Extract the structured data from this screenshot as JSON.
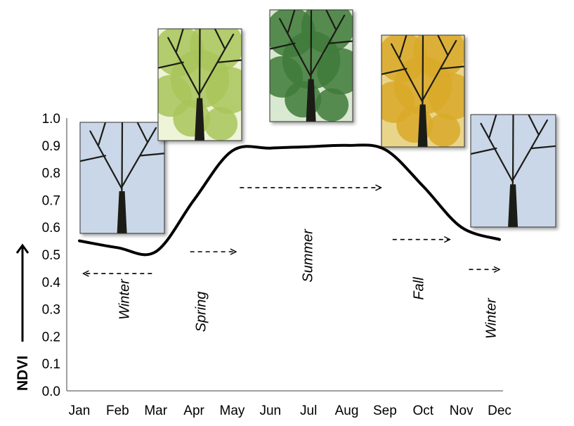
{
  "chart_data": {
    "type": "line",
    "title": "",
    "xlabel": "",
    "ylabel": "NDVI",
    "ylim": [
      0.0,
      1.0
    ],
    "y_ticks": [
      "0.0",
      "0.1",
      "0.2",
      "0.3",
      "0.4",
      "0.5",
      "0.6",
      "0.7",
      "0.8",
      "0.9",
      "1.0"
    ],
    "categories": [
      "Jan",
      "Feb",
      "Mar",
      "Apr",
      "May",
      "Jun",
      "Jul",
      "Aug",
      "Sep",
      "Oct",
      "Nov",
      "Dec"
    ],
    "series": [
      {
        "values": [
          0.55,
          0.525,
          0.51,
          0.7,
          0.88,
          0.89,
          0.895,
          0.9,
          0.885,
          0.75,
          0.6,
          0.555
        ]
      }
    ],
    "grid": false,
    "line_color": "#000000",
    "seasons": [
      {
        "label": "Winter",
        "x": 2.3,
        "label_y": 0.335,
        "arrow_from": 2.9,
        "arrow_to": 1.1,
        "arrow_y": 0.43
      },
      {
        "label": "Spring",
        "x": 4.3,
        "label_y": 0.29,
        "arrow_from": 3.9,
        "arrow_to": 5.1,
        "arrow_y": 0.51
      },
      {
        "label": "Summer",
        "x": 7.1,
        "label_y": 0.495,
        "arrow_from": 5.2,
        "arrow_to": 8.9,
        "arrow_y": 0.745
      },
      {
        "label": "Fall",
        "x": 10.0,
        "label_y": 0.375,
        "arrow_from": 9.2,
        "arrow_to": 10.7,
        "arrow_y": 0.555
      },
      {
        "label": "Winter",
        "x": 11.9,
        "label_y": 0.265,
        "arrow_from": 11.2,
        "arrow_to": 12.0,
        "arrow_y": 0.445
      }
    ],
    "photos": [
      {
        "name": "winter-tree-photo",
        "sky": "#c9d7e8",
        "foliage": "none"
      },
      {
        "name": "spring-tree-photo",
        "sky": "#eef4d8",
        "foliage": "#a8c45a"
      },
      {
        "name": "summer-tree-photo",
        "sky": "#d9e8d0",
        "foliage": "#3e7a3a"
      },
      {
        "name": "fall-tree-photo",
        "sky": "#e9d58a",
        "foliage": "#d9a92a"
      },
      {
        "name": "winter-tree-photo-2",
        "sky": "#c9d7e8",
        "foliage": "none"
      }
    ]
  }
}
